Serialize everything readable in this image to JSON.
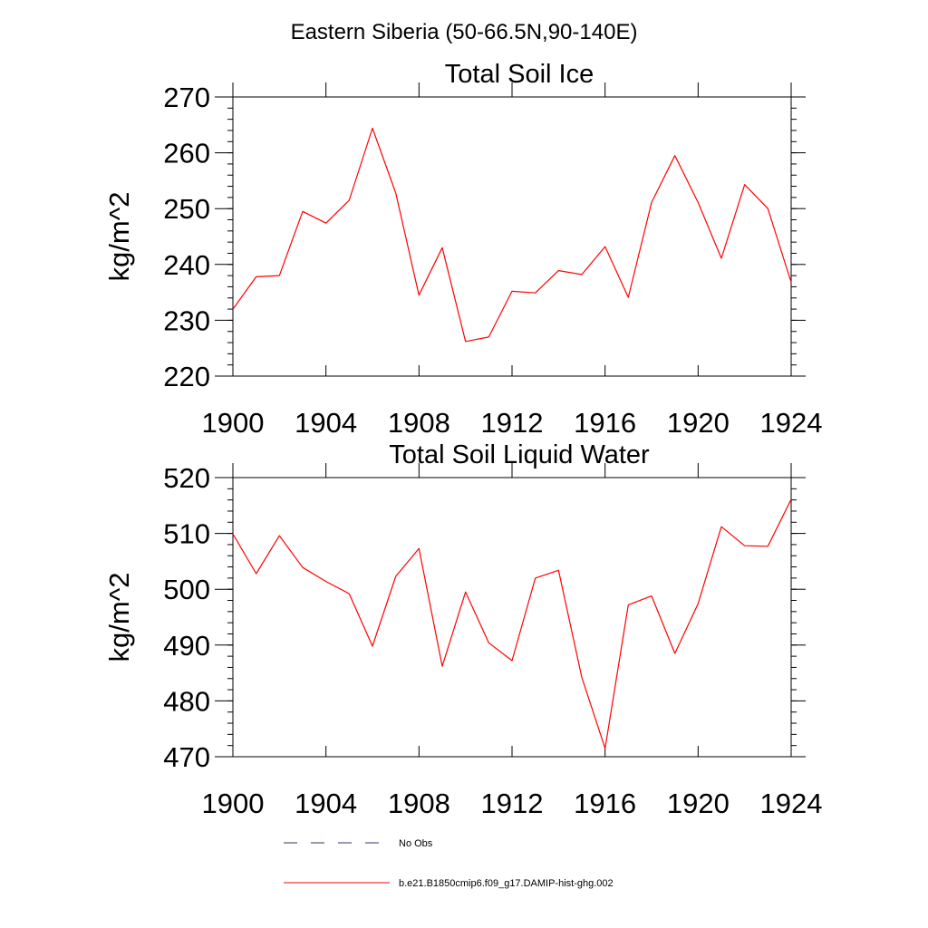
{
  "figure": {
    "title": "Eastern Siberia (50-66.5N,90-140E)"
  },
  "chart_data": [
    {
      "type": "line",
      "title": "Total Soil Ice",
      "xlabel": "",
      "ylabel": "kg/m^2",
      "xlim": [
        1900,
        1924
      ],
      "ylim": [
        220,
        270
      ],
      "x_ticks": [
        1900,
        1904,
        1908,
        1912,
        1916,
        1920,
        1924
      ],
      "y_ticks": [
        220,
        230,
        240,
        250,
        260,
        270
      ],
      "grid": false,
      "x": [
        1900,
        1901,
        1902,
        1903,
        1904,
        1905,
        1906,
        1907,
        1908,
        1909,
        1910,
        1911,
        1912,
        1913,
        1914,
        1915,
        1916,
        1917,
        1918,
        1919,
        1920,
        1921,
        1922,
        1923,
        1924
      ],
      "series": [
        {
          "name": "b.e21.B1850cmip6.f09_g17.DAMIP-hist-ghg.002",
          "color": "#ff0000",
          "values": [
            232.0,
            237.8,
            238.0,
            249.5,
            247.4,
            251.5,
            264.4,
            252.8,
            234.5,
            243.0,
            226.2,
            227.0,
            235.2,
            234.9,
            238.9,
            238.2,
            243.2,
            234.1,
            251.1,
            259.5,
            251.1,
            241.1,
            254.3,
            250.0,
            236.8
          ]
        }
      ]
    },
    {
      "type": "line",
      "title": "Total Soil Liquid Water",
      "xlabel": "",
      "ylabel": "kg/m^2",
      "xlim": [
        1900,
        1924
      ],
      "ylim": [
        470,
        520
      ],
      "x_ticks": [
        1900,
        1904,
        1908,
        1912,
        1916,
        1920,
        1924
      ],
      "y_ticks": [
        470,
        480,
        490,
        500,
        510,
        520
      ],
      "grid": false,
      "x": [
        1900,
        1901,
        1902,
        1903,
        1904,
        1905,
        1906,
        1907,
        1908,
        1909,
        1910,
        1911,
        1912,
        1913,
        1914,
        1915,
        1916,
        1917,
        1918,
        1919,
        1920,
        1921,
        1922,
        1923,
        1924
      ],
      "series": [
        {
          "name": "b.e21.B1850cmip6.f09_g17.DAMIP-hist-ghg.002",
          "color": "#ff0000",
          "values": [
            509.9,
            502.8,
            509.6,
            503.9,
            501.4,
            499.2,
            489.8,
            502.3,
            507.3,
            486.2,
            499.5,
            490.4,
            487.2,
            502.0,
            503.4,
            484.2,
            471.5,
            497.2,
            498.8,
            488.5,
            497.4,
            511.2,
            507.8,
            507.7,
            516.1
          ]
        }
      ]
    }
  ],
  "legend": {
    "placement": "bottom",
    "items": [
      {
        "label": "No Obs",
        "style": "dashed",
        "color": "#333366"
      },
      {
        "label": "b.e21.B1850cmip6.f09_g17.DAMIP-hist-ghg.002",
        "style": "solid",
        "color": "#ff0000"
      }
    ]
  }
}
